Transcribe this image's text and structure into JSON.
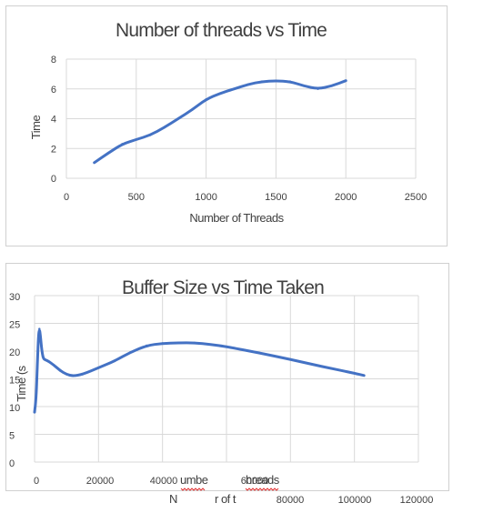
{
  "chart_data": [
    {
      "type": "line",
      "title": "Number of threads vs Time",
      "xlabel": "Number of Threads",
      "ylabel": "Time",
      "xlim": [
        0,
        2500
      ],
      "ylim": [
        0,
        8
      ],
      "x_ticks": [
        0,
        500,
        1000,
        1500,
        2000,
        2500
      ],
      "y_ticks": [
        0,
        2,
        4,
        6,
        8
      ],
      "grid": true,
      "series": [
        {
          "color": "#4472c4",
          "x": [
            200,
            300,
            400,
            500,
            600,
            700,
            800,
            900,
            1000,
            1100,
            1200,
            1300,
            1400,
            1500,
            1600,
            1700,
            1800,
            1900,
            2000
          ],
          "y": [
            1.05,
            1.7,
            2.3,
            2.6,
            2.9,
            3.4,
            4.0,
            4.6,
            5.3,
            5.7,
            6.0,
            6.3,
            6.5,
            6.55,
            6.5,
            6.2,
            6.0,
            6.2,
            6.55
          ]
        }
      ]
    },
    {
      "type": "line",
      "title": "Buffer Size vs Time Taken",
      "ylabel_fragment": "Time (s",
      "xlabel_fragments": [
        "umbe",
        "hreads",
        "N",
        "r of t"
      ],
      "xlim": [
        0,
        120000
      ],
      "ylim": [
        0,
        30
      ],
      "x_ticks": [
        0,
        20000,
        40000,
        60000,
        80000,
        100000,
        120000
      ],
      "y_ticks": [
        0,
        5,
        10,
        15,
        20,
        25,
        30
      ],
      "grid": true,
      "series": [
        {
          "color": "#4472c4",
          "x": [
            0,
            300,
            600,
            900,
            1200,
            1500,
            1800,
            2200,
            2600,
            3000,
            4000,
            6000,
            8000,
            10000,
            12000,
            15000,
            20000,
            25000,
            30000,
            35000,
            40000,
            45000,
            50000,
            55000,
            60000,
            70000,
            80000,
            90000,
            100000,
            103000
          ],
          "y": [
            9.0,
            10.5,
            13.0,
            18.0,
            22.5,
            24.0,
            23.0,
            20.5,
            19.0,
            18.5,
            18.3,
            17.5,
            16.5,
            15.8,
            15.5,
            15.8,
            17.0,
            18.2,
            19.8,
            21.0,
            21.4,
            21.5,
            21.5,
            21.2,
            20.8,
            19.7,
            18.5,
            17.2,
            16.0,
            15.6
          ]
        }
      ]
    }
  ]
}
